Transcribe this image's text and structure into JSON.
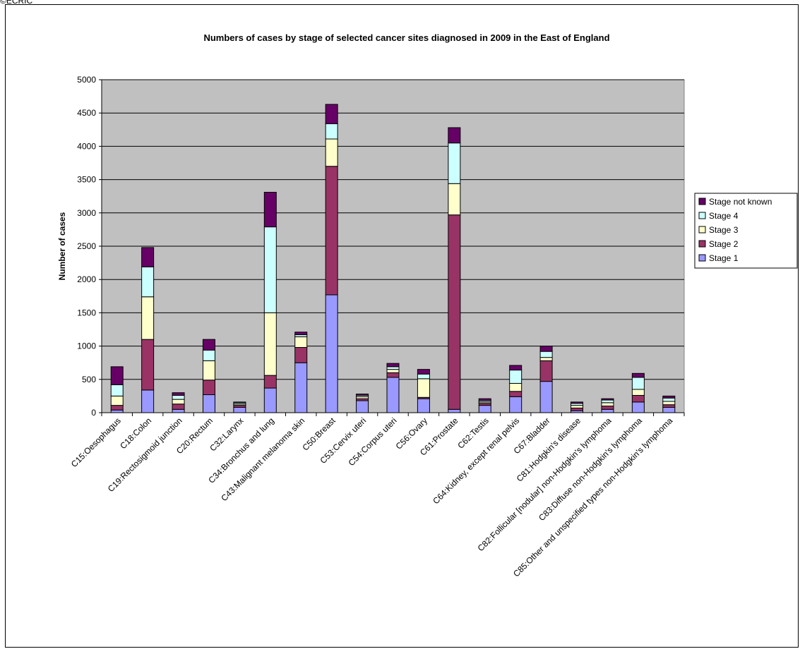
{
  "copyright": "©ECRIC",
  "chart_data": {
    "type": "bar",
    "stacked": true,
    "title": "Numbers of cases by stage of selected cancer sites diagnosed in 2009 in the East of England",
    "xlabel": "",
    "ylabel": "Number of cases",
    "ylim": [
      0,
      5000
    ],
    "yticks": [
      0,
      500,
      1000,
      1500,
      2000,
      2500,
      3000,
      3500,
      4000,
      4500,
      5000
    ],
    "grid": true,
    "legend_position": "right",
    "categories": [
      "C15:Oesophagus",
      "C18:Colon",
      "C19:Rectosigmoid junction",
      "C20:Rectum",
      "C32:Larynx",
      "C34:Bronchus and lung",
      "C43:Malignant melanoma skin",
      "C50:Breast",
      "C53:Cervix uteri",
      "C54:Corpus uteri",
      "C56:Ovary",
      "C61:Prostate",
      "C62:Testis",
      "C64:Kidney, except renal pelvis",
      "C67:Bladder",
      "C81:Hodgkin's disease",
      "C82:Follicular [nodular] non-Hodgkin's lymphoma",
      "C83:Diffuse non-Hodgkin's lymphoma",
      "C85:Other and unspecified types non-Hodgkin's lymphoma"
    ],
    "series": [
      {
        "name": "Stage 1",
        "color": "#9999ff",
        "values": [
          40,
          340,
          50,
          270,
          80,
          370,
          750,
          1770,
          180,
          530,
          210,
          50,
          110,
          240,
          470,
          30,
          50,
          160,
          80
        ]
      },
      {
        "name": "Stage 2",
        "color": "#993366",
        "values": [
          70,
          760,
          80,
          220,
          30,
          190,
          230,
          1930,
          30,
          70,
          20,
          2920,
          30,
          80,
          310,
          40,
          50,
          100,
          40
        ]
      },
      {
        "name": "Stage 3",
        "color": "#ffffcc",
        "values": [
          140,
          640,
          70,
          290,
          20,
          940,
          160,
          410,
          30,
          50,
          280,
          470,
          20,
          120,
          50,
          40,
          50,
          90,
          50
        ]
      },
      {
        "name": "Stage 4",
        "color": "#ccffff",
        "values": [
          170,
          450,
          60,
          160,
          20,
          1290,
          30,
          230,
          20,
          40,
          70,
          610,
          20,
          200,
          90,
          30,
          40,
          180,
          50
        ]
      },
      {
        "name": "Stage not known",
        "color": "#660066",
        "values": [
          270,
          290,
          40,
          160,
          10,
          520,
          40,
          290,
          20,
          50,
          70,
          230,
          30,
          70,
          80,
          20,
          20,
          60,
          30
        ]
      }
    ],
    "legend_order": [
      "Stage not known",
      "Stage 4",
      "Stage 3",
      "Stage 2",
      "Stage 1"
    ]
  }
}
